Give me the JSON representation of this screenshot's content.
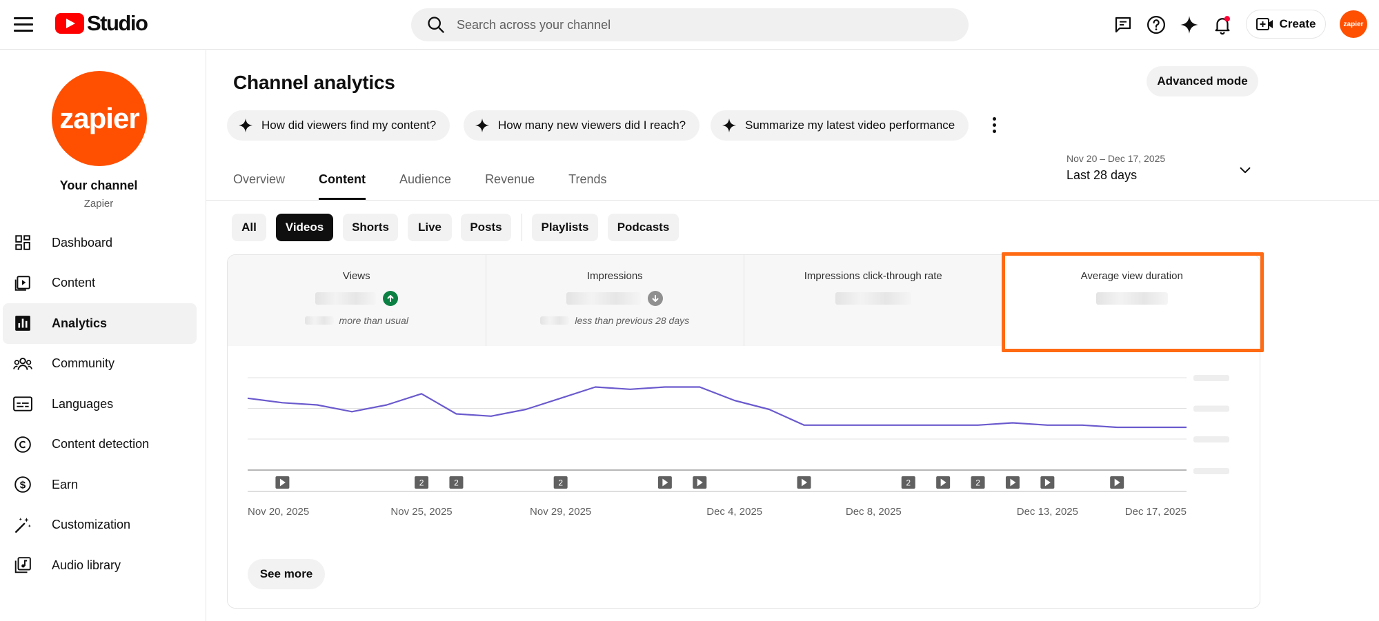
{
  "app": {
    "logo_text": "Studio",
    "logo_icon": "youtube-play-icon"
  },
  "search": {
    "placeholder": "Search across your channel",
    "value": ""
  },
  "header": {
    "icons": [
      "feedback-icon",
      "help-icon",
      "sparkle-icon",
      "notifications-icon"
    ],
    "create_label": "Create",
    "avatar_text": "zapier"
  },
  "sidebar": {
    "avatar_text": "zapier",
    "channel_title": "Your channel",
    "channel_name": "Zapier",
    "items": [
      {
        "label": "Dashboard",
        "icon": "dashboard-icon"
      },
      {
        "label": "Content",
        "icon": "content-icon"
      },
      {
        "label": "Analytics",
        "icon": "analytics-icon",
        "active": true
      },
      {
        "label": "Community",
        "icon": "community-icon"
      },
      {
        "label": "Languages",
        "icon": "languages-icon"
      },
      {
        "label": "Content detection",
        "icon": "copyright-icon"
      },
      {
        "label": "Earn",
        "icon": "dollar-icon"
      },
      {
        "label": "Customization",
        "icon": "magic-wand-icon"
      },
      {
        "label": "Audio library",
        "icon": "audio-library-icon"
      }
    ]
  },
  "main": {
    "title": "Channel analytics",
    "advanced_mode_label": "Advanced mode",
    "ai_chips": [
      "How did viewers find my content?",
      "How many new viewers did I reach?",
      "Summarize my latest video performance"
    ],
    "tabs": [
      "Overview",
      "Content",
      "Audience",
      "Revenue",
      "Trends"
    ],
    "active_tab": "Content",
    "date_range": {
      "range": "Nov 20 – Dec 17, 2025",
      "label": "Last 28 days"
    },
    "filters": [
      "All",
      "Videos",
      "Shorts",
      "Live",
      "Posts",
      "Playlists",
      "Podcasts"
    ],
    "active_filter": "Videos",
    "metrics": [
      {
        "label": "Views",
        "trend": "up",
        "note": "more than usual",
        "trend_color": "#0b8043"
      },
      {
        "label": "Impressions",
        "trend": "down",
        "note": "less than previous 28 days",
        "trend_color": "#909090"
      },
      {
        "label": "Impressions click-through rate"
      },
      {
        "label": "Average view duration",
        "highlighted": true
      }
    ],
    "see_more_label": "See more"
  },
  "chart_data": {
    "type": "line",
    "series": [
      {
        "values": [
          69,
          67,
          66,
          63,
          66,
          71,
          62,
          61,
          64,
          69,
          74,
          73,
          74,
          74,
          68,
          64,
          57,
          57,
          57,
          57,
          57,
          57,
          58,
          57,
          57,
          56,
          56,
          56
        ]
      }
    ],
    "x_tick_labels": [
      "Nov 20, 2025",
      "Nov 25, 2025",
      "Nov 29, 2025",
      "Dec 4, 2025",
      "Dec 8, 2025",
      "Dec 13, 2025",
      "Dec 17, 2025"
    ],
    "x_tick_days": [
      0,
      5,
      9,
      14,
      18,
      23,
      27
    ],
    "publish_markers": [
      {
        "day": 1,
        "kind": "video"
      },
      {
        "day": 5,
        "kind": "count",
        "count": "2"
      },
      {
        "day": 6,
        "kind": "count",
        "count": "2"
      },
      {
        "day": 9,
        "kind": "count",
        "count": "2"
      },
      {
        "day": 12,
        "kind": "video"
      },
      {
        "day": 13,
        "kind": "video"
      },
      {
        "day": 16,
        "kind": "video"
      },
      {
        "day": 19,
        "kind": "count",
        "count": "2"
      },
      {
        "day": 20,
        "kind": "video"
      },
      {
        "day": 21,
        "kind": "count",
        "count": "2"
      },
      {
        "day": 22,
        "kind": "video"
      },
      {
        "day": 23,
        "kind": "video"
      },
      {
        "day": 25,
        "kind": "video"
      }
    ],
    "ylim": [
      40,
      80
    ],
    "grid": true,
    "line_color": "#6a5acd",
    "y_tick_labels_hidden": true
  }
}
